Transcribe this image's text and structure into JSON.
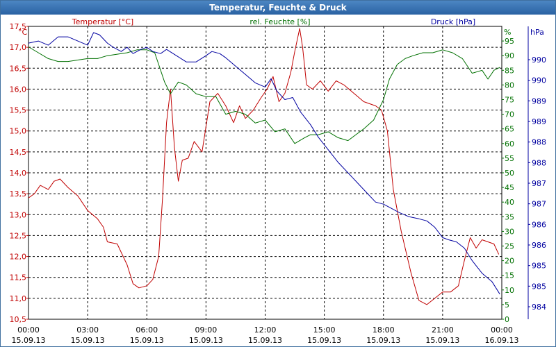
{
  "window": {
    "title": "Temperatur, Feuchte & Druck"
  },
  "colors": {
    "temperature": "#c00000",
    "humidity": "#007000",
    "pressure": "#0000a0",
    "grid": "#000000"
  },
  "chart_data": {
    "type": "line",
    "title": "Temperatur, Feuchte & Druck",
    "grid": true,
    "x_ticks": [
      {
        "time": "00:00",
        "date": "15.09.13"
      },
      {
        "time": "03:00",
        "date": "15.09.13"
      },
      {
        "time": "06:00",
        "date": "15.09.13"
      },
      {
        "time": "09:00",
        "date": "15.09.13"
      },
      {
        "time": "12:00",
        "date": "15.09.13"
      },
      {
        "time": "15:00",
        "date": "15.09.13"
      },
      {
        "time": "18:00",
        "date": "15.09.13"
      },
      {
        "time": "21:00",
        "date": "15.09.13"
      },
      {
        "time": "00:00",
        "date": "16.09.13"
      }
    ],
    "xlim_hours": [
      0,
      24
    ],
    "axes": {
      "temperature": {
        "label": "Temperatur [°C]",
        "unit": "°C",
        "side": "left",
        "ylim": [
          10.5,
          17.5
        ],
        "ticks": [
          "10,5",
          "11,0",
          "11,5",
          "12,0",
          "12,5",
          "13,0",
          "13,5",
          "14,0",
          "14,5",
          "15,0",
          "15,5",
          "16,0",
          "16,5",
          "17,0",
          "17,5"
        ]
      },
      "humidity": {
        "label": "rel. Feuchte [%]",
        "unit": "%",
        "side": "right",
        "ylim": [
          0,
          100
        ],
        "ticks": [
          "0",
          "5",
          "10",
          "15",
          "20",
          "25",
          "30",
          "35",
          "40",
          "45",
          "50",
          "55",
          "60",
          "65",
          "70",
          "75",
          "80",
          "85",
          "90",
          "95"
        ]
      },
      "pressure": {
        "label": "Druck [hPa]",
        "unit": "hPa",
        "side": "right-outer",
        "ylim": [
          983.6,
          990.6
        ],
        "ticks": [
          "984",
          "985",
          "985",
          "986",
          "986",
          "987",
          "987",
          "988",
          "988",
          "989",
          "989",
          "990",
          "990"
        ]
      }
    },
    "series": [
      {
        "name": "Temperatur [°C]",
        "axis": "temperature",
        "color": "#c00000",
        "points": [
          [
            0,
            13.4
          ],
          [
            0.3,
            13.5
          ],
          [
            0.6,
            13.7
          ],
          [
            1.0,
            13.6
          ],
          [
            1.3,
            13.8
          ],
          [
            1.6,
            13.85
          ],
          [
            2.0,
            13.65
          ],
          [
            2.5,
            13.45
          ],
          [
            3.0,
            13.1
          ],
          [
            3.5,
            12.9
          ],
          [
            3.8,
            12.7
          ],
          [
            4.0,
            12.35
          ],
          [
            4.5,
            12.3
          ],
          [
            5.0,
            11.8
          ],
          [
            5.3,
            11.35
          ],
          [
            5.6,
            11.25
          ],
          [
            6.0,
            11.3
          ],
          [
            6.3,
            11.45
          ],
          [
            6.6,
            12.0
          ],
          [
            6.8,
            13.4
          ],
          [
            7.0,
            15.2
          ],
          [
            7.2,
            16.0
          ],
          [
            7.4,
            14.6
          ],
          [
            7.6,
            13.8
          ],
          [
            7.8,
            14.3
          ],
          [
            8.1,
            14.35
          ],
          [
            8.4,
            14.75
          ],
          [
            8.8,
            14.5
          ],
          [
            9.2,
            15.7
          ],
          [
            9.6,
            15.9
          ],
          [
            10.0,
            15.6
          ],
          [
            10.4,
            15.2
          ],
          [
            10.7,
            15.6
          ],
          [
            11.0,
            15.3
          ],
          [
            11.4,
            15.5
          ],
          [
            11.8,
            15.8
          ],
          [
            12.1,
            16.0
          ],
          [
            12.4,
            16.3
          ],
          [
            12.7,
            15.7
          ],
          [
            13.0,
            15.9
          ],
          [
            13.3,
            16.4
          ],
          [
            13.5,
            16.9
          ],
          [
            13.75,
            17.45
          ],
          [
            13.9,
            17.0
          ],
          [
            14.1,
            16.1
          ],
          [
            14.4,
            16.0
          ],
          [
            14.8,
            16.2
          ],
          [
            15.2,
            15.95
          ],
          [
            15.6,
            16.2
          ],
          [
            16.0,
            16.1
          ],
          [
            16.5,
            15.9
          ],
          [
            17.0,
            15.7
          ],
          [
            17.3,
            15.65
          ],
          [
            17.6,
            15.6
          ],
          [
            17.9,
            15.5
          ],
          [
            18.2,
            15.0
          ],
          [
            18.5,
            13.6
          ],
          [
            18.9,
            12.6
          ],
          [
            19.4,
            11.6
          ],
          [
            19.8,
            10.95
          ],
          [
            20.2,
            10.85
          ],
          [
            20.6,
            11.0
          ],
          [
            21.0,
            11.15
          ],
          [
            21.4,
            11.15
          ],
          [
            21.8,
            11.3
          ],
          [
            22.1,
            11.9
          ],
          [
            22.4,
            12.45
          ],
          [
            22.7,
            12.2
          ],
          [
            23.0,
            12.4
          ],
          [
            23.3,
            12.35
          ],
          [
            23.6,
            12.3
          ],
          [
            23.85,
            12.05
          ]
        ]
      },
      {
        "name": "rel. Feuchte [%]",
        "axis": "humidity",
        "color": "#007000",
        "points": [
          [
            0,
            93
          ],
          [
            0.5,
            91
          ],
          [
            1.0,
            89
          ],
          [
            1.5,
            88
          ],
          [
            2.0,
            88
          ],
          [
            2.5,
            88.5
          ],
          [
            3.0,
            89
          ],
          [
            3.5,
            89
          ],
          [
            4.0,
            90
          ],
          [
            4.5,
            90.5
          ],
          [
            5.0,
            91
          ],
          [
            5.5,
            92
          ],
          [
            6.0,
            92
          ],
          [
            6.4,
            91
          ],
          [
            6.6,
            87
          ],
          [
            6.9,
            81
          ],
          [
            7.2,
            77
          ],
          [
            7.6,
            81
          ],
          [
            8.0,
            80
          ],
          [
            8.5,
            77
          ],
          [
            9.0,
            76
          ],
          [
            9.5,
            76
          ],
          [
            10.0,
            70
          ],
          [
            10.5,
            71
          ],
          [
            11.0,
            70
          ],
          [
            11.5,
            67
          ],
          [
            12.0,
            68
          ],
          [
            12.5,
            64
          ],
          [
            13.0,
            65
          ],
          [
            13.5,
            60
          ],
          [
            14.0,
            62
          ],
          [
            14.3,
            63
          ],
          [
            14.7,
            63
          ],
          [
            15.2,
            64
          ],
          [
            15.7,
            62
          ],
          [
            16.2,
            61
          ],
          [
            16.6,
            63
          ],
          [
            17.0,
            65
          ],
          [
            17.5,
            68
          ],
          [
            18.0,
            75
          ],
          [
            18.3,
            82
          ],
          [
            18.7,
            87
          ],
          [
            19.1,
            89
          ],
          [
            19.5,
            90
          ],
          [
            20.0,
            91
          ],
          [
            20.5,
            91
          ],
          [
            21.0,
            92
          ],
          [
            21.5,
            91
          ],
          [
            22.0,
            89
          ],
          [
            22.5,
            84
          ],
          [
            23.0,
            85
          ],
          [
            23.3,
            82
          ],
          [
            23.6,
            85
          ],
          [
            23.9,
            86
          ]
        ]
      },
      {
        "name": "Druck [hPa]",
        "axis": "pressure",
        "color": "#0000a0",
        "points": [
          [
            0,
            990.2
          ],
          [
            0.5,
            990.25
          ],
          [
            1.0,
            990.15
          ],
          [
            1.5,
            990.35
          ],
          [
            2.0,
            990.35
          ],
          [
            2.5,
            990.25
          ],
          [
            3.0,
            990.15
          ],
          [
            3.3,
            990.45
          ],
          [
            3.6,
            990.4
          ],
          [
            4.0,
            990.2
          ],
          [
            4.3,
            990.1
          ],
          [
            4.7,
            990.0
          ],
          [
            5.0,
            990.1
          ],
          [
            5.3,
            989.95
          ],
          [
            5.7,
            990.05
          ],
          [
            6.0,
            990.1
          ],
          [
            6.3,
            990.0
          ],
          [
            6.7,
            989.95
          ],
          [
            7.0,
            990.05
          ],
          [
            7.5,
            989.9
          ],
          [
            8.0,
            989.75
          ],
          [
            8.5,
            989.75
          ],
          [
            9.0,
            989.9
          ],
          [
            9.3,
            990.0
          ],
          [
            9.7,
            989.95
          ],
          [
            10.0,
            989.85
          ],
          [
            10.5,
            989.65
          ],
          [
            11.0,
            989.45
          ],
          [
            11.5,
            989.25
          ],
          [
            12.0,
            989.15
          ],
          [
            12.3,
            989.35
          ],
          [
            12.6,
            989.05
          ],
          [
            13.0,
            988.85
          ],
          [
            13.4,
            988.9
          ],
          [
            13.8,
            988.55
          ],
          [
            14.3,
            988.25
          ],
          [
            14.7,
            987.95
          ],
          [
            15.2,
            987.65
          ],
          [
            15.7,
            987.35
          ],
          [
            16.2,
            987.1
          ],
          [
            16.7,
            986.85
          ],
          [
            17.2,
            986.6
          ],
          [
            17.6,
            986.4
          ],
          [
            18.0,
            986.35
          ],
          [
            18.4,
            986.25
          ],
          [
            18.8,
            986.15
          ],
          [
            19.3,
            986.05
          ],
          [
            19.8,
            986.0
          ],
          [
            20.2,
            985.95
          ],
          [
            20.6,
            985.8
          ],
          [
            21.0,
            985.55
          ],
          [
            21.3,
            985.5
          ],
          [
            21.7,
            985.45
          ],
          [
            22.1,
            985.3
          ],
          [
            22.5,
            985.0
          ],
          [
            23.0,
            984.7
          ],
          [
            23.5,
            984.5
          ],
          [
            23.9,
            984.2
          ]
        ]
      }
    ]
  }
}
